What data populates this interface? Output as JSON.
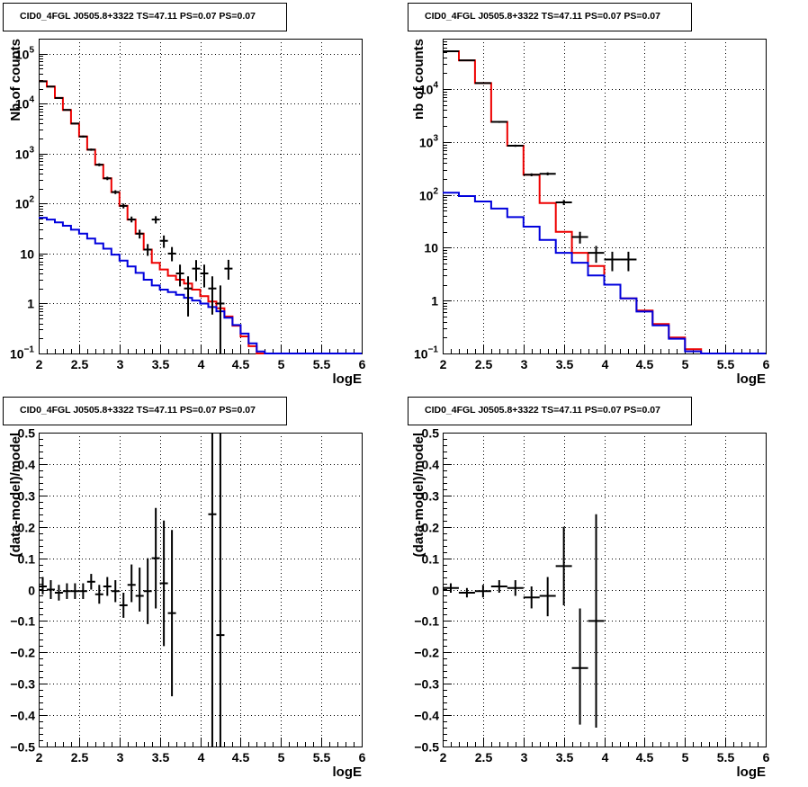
{
  "chart_data": [
    {
      "id": "p1",
      "type": "line",
      "title": "CID0_4FGL J0505.8+3322 TS=47.11 PS=0.07 PS=0.07",
      "xlabel": "logE",
      "ylabel": "Nb of counts",
      "xlim": [
        2,
        6
      ],
      "ylog": true,
      "ylim": [
        0.1,
        200000
      ],
      "grid": true,
      "xticks": [
        "2",
        "2.5",
        "3",
        "3.5",
        "4",
        "4.5",
        "5",
        "5.5",
        "6"
      ],
      "yticks": [
        {
          "v": 0.1,
          "base": "10",
          "exp": "−1"
        },
        {
          "v": 1,
          "label": "1"
        },
        {
          "v": 10,
          "label": "10"
        },
        {
          "v": 100,
          "base": "10",
          "exp": "2"
        },
        {
          "v": 1000,
          "base": "10",
          "exp": "3"
        },
        {
          "v": 10000,
          "base": "10",
          "exp": "4"
        },
        {
          "v": 100000,
          "base": "10",
          "exp": "5"
        }
      ],
      "series": [
        {
          "color": "#ee0000",
          "kind": "step",
          "edges_start": 2.0,
          "bin": 0.1,
          "values": [
            28000,
            22000,
            13000,
            7500,
            4000,
            2200,
            1200,
            600,
            320,
            170,
            90,
            48,
            25,
            12,
            6.5,
            4.8,
            3.6,
            3.0,
            2.5,
            1.9,
            1.4,
            1.1,
            0.8,
            0.55,
            0.36,
            0.22,
            0.14,
            0.1,
            0.1,
            0.1,
            0.1,
            0.1,
            0.1,
            0.1,
            0.1,
            0.1,
            0.1,
            0.1,
            0.1,
            0.1
          ]
        },
        {
          "color": "#0000dd",
          "kind": "step",
          "edges_start": 2.0,
          "bin": 0.1,
          "values": [
            52,
            48,
            42,
            36,
            30,
            25,
            20,
            16,
            12.5,
            9.5,
            7.2,
            5.5,
            4.1,
            3.0,
            2.3,
            1.9,
            1.7,
            1.5,
            1.3,
            1.15,
            1.0,
            0.85,
            0.7,
            0.52,
            0.37,
            0.25,
            0.16,
            0.11,
            0.1,
            0.1,
            0.1,
            0.1,
            0.1,
            0.1,
            0.1,
            0.1,
            0.1,
            0.1,
            0.1,
            0.1
          ]
        },
        {
          "color": "#000000",
          "kind": "errors",
          "points": [
            {
              "x": 2.05,
              "y": 28000,
              "lo": 27500,
              "hi": 28500
            },
            {
              "x": 2.15,
              "y": 22000,
              "lo": 21500,
              "hi": 22500
            },
            {
              "x": 2.25,
              "y": 13000,
              "lo": 12700,
              "hi": 13300
            },
            {
              "x": 2.35,
              "y": 7500,
              "lo": 7300,
              "hi": 7700
            },
            {
              "x": 2.45,
              "y": 4000,
              "lo": 3850,
              "hi": 4150
            },
            {
              "x": 2.55,
              "y": 2200,
              "lo": 2100,
              "hi": 2300
            },
            {
              "x": 2.65,
              "y": 1200,
              "lo": 1140,
              "hi": 1260
            },
            {
              "x": 2.75,
              "y": 600,
              "lo": 560,
              "hi": 640
            },
            {
              "x": 2.85,
              "y": 320,
              "lo": 295,
              "hi": 345
            },
            {
              "x": 2.95,
              "y": 170,
              "lo": 155,
              "hi": 185
            },
            {
              "x": 3.05,
              "y": 90,
              "lo": 80,
              "hi": 100
            },
            {
              "x": 3.15,
              "y": 48,
              "lo": 42,
              "hi": 55
            },
            {
              "x": 3.25,
              "y": 25,
              "lo": 20,
              "hi": 30
            },
            {
              "x": 3.35,
              "y": 12,
              "lo": 9,
              "hi": 15.5
            },
            {
              "x": 3.45,
              "y": 48,
              "lo": 40,
              "hi": 56
            },
            {
              "x": 3.55,
              "y": 18,
              "lo": 13,
              "hi": 23
            },
            {
              "x": 3.65,
              "y": 10,
              "lo": 7,
              "hi": 13.5
            },
            {
              "x": 3.75,
              "y": 4,
              "lo": 2.2,
              "hi": 6
            },
            {
              "x": 3.85,
              "y": 2,
              "lo": 0.55,
              "hi": 3.5
            },
            {
              "x": 3.95,
              "y": 5,
              "lo": 2.8,
              "hi": 7.4
            },
            {
              "x": 4.05,
              "y": 4,
              "lo": 2.1,
              "hi": 6
            },
            {
              "x": 4.15,
              "y": 2,
              "lo": 0.6,
              "hi": 3.5
            },
            {
              "x": 4.25,
              "y": 1,
              "lo": 0.1,
              "hi": 2.3
            },
            {
              "x": 4.35,
              "y": 5,
              "lo": 3,
              "hi": 7.5
            }
          ]
        }
      ]
    },
    {
      "id": "p2",
      "type": "line",
      "title": "CID0_4FGL J0505.8+3322 TS=47.11 PS=0.07 PS=0.07",
      "xlabel": "logE",
      "ylabel": "nb of counts",
      "xlim": [
        2,
        6
      ],
      "ylog": true,
      "ylim": [
        0.1,
        90000
      ],
      "grid": true,
      "xticks": [
        "2",
        "2.5",
        "3",
        "3.5",
        "4",
        "4.5",
        "5",
        "5.5",
        "6"
      ],
      "yticks": [
        {
          "v": 0.1,
          "base": "10",
          "exp": "−1"
        },
        {
          "v": 1,
          "label": "1"
        },
        {
          "v": 10,
          "label": "10"
        },
        {
          "v": 100,
          "base": "10",
          "exp": "2"
        },
        {
          "v": 1000,
          "base": "10",
          "exp": "3"
        },
        {
          "v": 10000,
          "base": "10",
          "exp": "4"
        }
      ],
      "series": [
        {
          "color": "#ee0000",
          "kind": "step",
          "edges_start": 2.0,
          "bin": 0.2,
          "values": [
            52000,
            35000,
            13000,
            2400,
            850,
            240,
            70,
            20,
            8,
            4.5,
            2.0,
            1.1,
            0.65,
            0.36,
            0.2,
            0.12,
            0.1,
            0.1,
            0.1,
            0.1
          ]
        },
        {
          "color": "#0000dd",
          "kind": "step",
          "edges_start": 2.0,
          "bin": 0.2,
          "values": [
            110,
            95,
            75,
            55,
            38,
            25,
            14,
            8,
            5.2,
            3.0,
            2.0,
            1.1,
            0.62,
            0.34,
            0.19,
            0.11,
            0.1,
            0.1,
            0.1,
            0.1
          ]
        },
        {
          "color": "#000000",
          "kind": "errors",
          "points": [
            {
              "x": 2.1,
              "y": 52000,
              "lo": 51000,
              "hi": 53000
            },
            {
              "x": 2.3,
              "y": 35000,
              "lo": 34300,
              "hi": 35700
            },
            {
              "x": 2.5,
              "y": 13000,
              "lo": 12700,
              "hi": 13300
            },
            {
              "x": 2.7,
              "y": 2400,
              "lo": 2300,
              "hi": 2500
            },
            {
              "x": 2.9,
              "y": 850,
              "lo": 810,
              "hi": 890
            },
            {
              "x": 3.1,
              "y": 240,
              "lo": 225,
              "hi": 255
            },
            {
              "x": 3.3,
              "y": 250,
              "lo": 234,
              "hi": 266
            },
            {
              "x": 3.5,
              "y": 72,
              "lo": 64,
              "hi": 80
            },
            {
              "x": 3.7,
              "y": 16,
              "lo": 12,
              "hi": 20
            },
            {
              "x": 3.9,
              "y": 8,
              "lo": 5.2,
              "hi": 10.8
            },
            {
              "x": 4.1,
              "y": 6,
              "lo": 3.6,
              "hi": 8.4
            },
            {
              "x": 4.3,
              "y": 6,
              "lo": 3.6,
              "hi": 8.4
            }
          ]
        }
      ]
    },
    {
      "id": "p3",
      "type": "scatter",
      "title": "CID0_4FGL J0505.8+3322 TS=47.11 PS=0.07 PS=0.07",
      "xlabel": "logE",
      "ylabel": "(data-model)/model",
      "xlim": [
        2,
        6
      ],
      "ylim": [
        -0.5,
        0.5
      ],
      "grid": true,
      "xticks": [
        "2",
        "2.5",
        "3",
        "3.5",
        "4",
        "4.5",
        "5",
        "5.5",
        "6"
      ],
      "yticks": [
        "−0.5",
        "−0.4",
        "−0.3",
        "−0.2",
        "−0.1",
        "0",
        "0.1",
        "0.2",
        "0.3",
        "0.4",
        "0.5"
      ],
      "points": [
        {
          "x": 2.05,
          "y": 0.01,
          "lo": -0.015,
          "hi": 0.04
        },
        {
          "x": 2.15,
          "y": 0.0,
          "lo": -0.03,
          "hi": 0.03
        },
        {
          "x": 2.25,
          "y": -0.01,
          "lo": -0.035,
          "hi": 0.015
        },
        {
          "x": 2.35,
          "y": -0.005,
          "lo": -0.03,
          "hi": 0.02
        },
        {
          "x": 2.45,
          "y": -0.005,
          "lo": -0.03,
          "hi": 0.02
        },
        {
          "x": 2.55,
          "y": -0.005,
          "lo": -0.03,
          "hi": 0.02
        },
        {
          "x": 2.65,
          "y": 0.025,
          "lo": 0.0,
          "hi": 0.05
        },
        {
          "x": 2.75,
          "y": -0.015,
          "lo": -0.045,
          "hi": 0.015
        },
        {
          "x": 2.85,
          "y": 0.01,
          "lo": -0.02,
          "hi": 0.04
        },
        {
          "x": 2.95,
          "y": -0.005,
          "lo": -0.04,
          "hi": 0.03
        },
        {
          "x": 3.05,
          "y": -0.05,
          "lo": -0.09,
          "hi": -0.01
        },
        {
          "x": 3.15,
          "y": 0.015,
          "lo": -0.04,
          "hi": 0.08
        },
        {
          "x": 3.25,
          "y": -0.02,
          "lo": -0.07,
          "hi": 0.07
        },
        {
          "x": 3.35,
          "y": -0.005,
          "lo": -0.11,
          "hi": 0.1
        },
        {
          "x": 3.45,
          "y": 0.1,
          "lo": -0.06,
          "hi": 0.26
        },
        {
          "x": 3.55,
          "y": 0.02,
          "lo": -0.18,
          "hi": 0.22
        },
        {
          "x": 3.65,
          "y": -0.075,
          "lo": -0.34,
          "hi": 0.19
        },
        {
          "x": 4.15,
          "y": 0.24,
          "lo": -0.5,
          "hi": 0.5
        },
        {
          "x": 4.25,
          "y": -0.145,
          "lo": -0.5,
          "hi": 0.5
        }
      ]
    },
    {
      "id": "p4",
      "type": "scatter",
      "title": "CID0_4FGL J0505.8+3322 TS=47.11 PS=0.07 PS=0.07",
      "xlabel": "logE",
      "ylabel": "(data-model)/model",
      "xlim": [
        2,
        6
      ],
      "ylim": [
        -0.5,
        0.5
      ],
      "grid": true,
      "xticks": [
        "2",
        "2.5",
        "3",
        "3.5",
        "4",
        "4.5",
        "5",
        "5.5",
        "6"
      ],
      "yticks": [
        "−0.5",
        "−0.4",
        "−0.3",
        "−0.2",
        "−0.1",
        "0",
        "0.1",
        "0.2",
        "0.3",
        "0.4",
        "0.5"
      ],
      "points": [
        {
          "x": 2.1,
          "y": 0.005,
          "lo": -0.01,
          "hi": 0.02
        },
        {
          "x": 2.3,
          "y": -0.01,
          "lo": -0.025,
          "hi": 0.005
        },
        {
          "x": 2.5,
          "y": -0.005,
          "lo": -0.025,
          "hi": 0.015
        },
        {
          "x": 2.7,
          "y": 0.01,
          "lo": -0.01,
          "hi": 0.03
        },
        {
          "x": 2.9,
          "y": 0.005,
          "lo": -0.02,
          "hi": 0.03
        },
        {
          "x": 3.1,
          "y": -0.025,
          "lo": -0.06,
          "hi": 0.01
        },
        {
          "x": 3.3,
          "y": -0.02,
          "lo": -0.085,
          "hi": 0.04
        },
        {
          "x": 3.5,
          "y": 0.075,
          "lo": -0.05,
          "hi": 0.2
        },
        {
          "x": 3.7,
          "y": -0.25,
          "lo": -0.43,
          "hi": -0.06
        },
        {
          "x": 3.9,
          "y": -0.1,
          "lo": -0.44,
          "hi": 0.24
        }
      ]
    }
  ]
}
